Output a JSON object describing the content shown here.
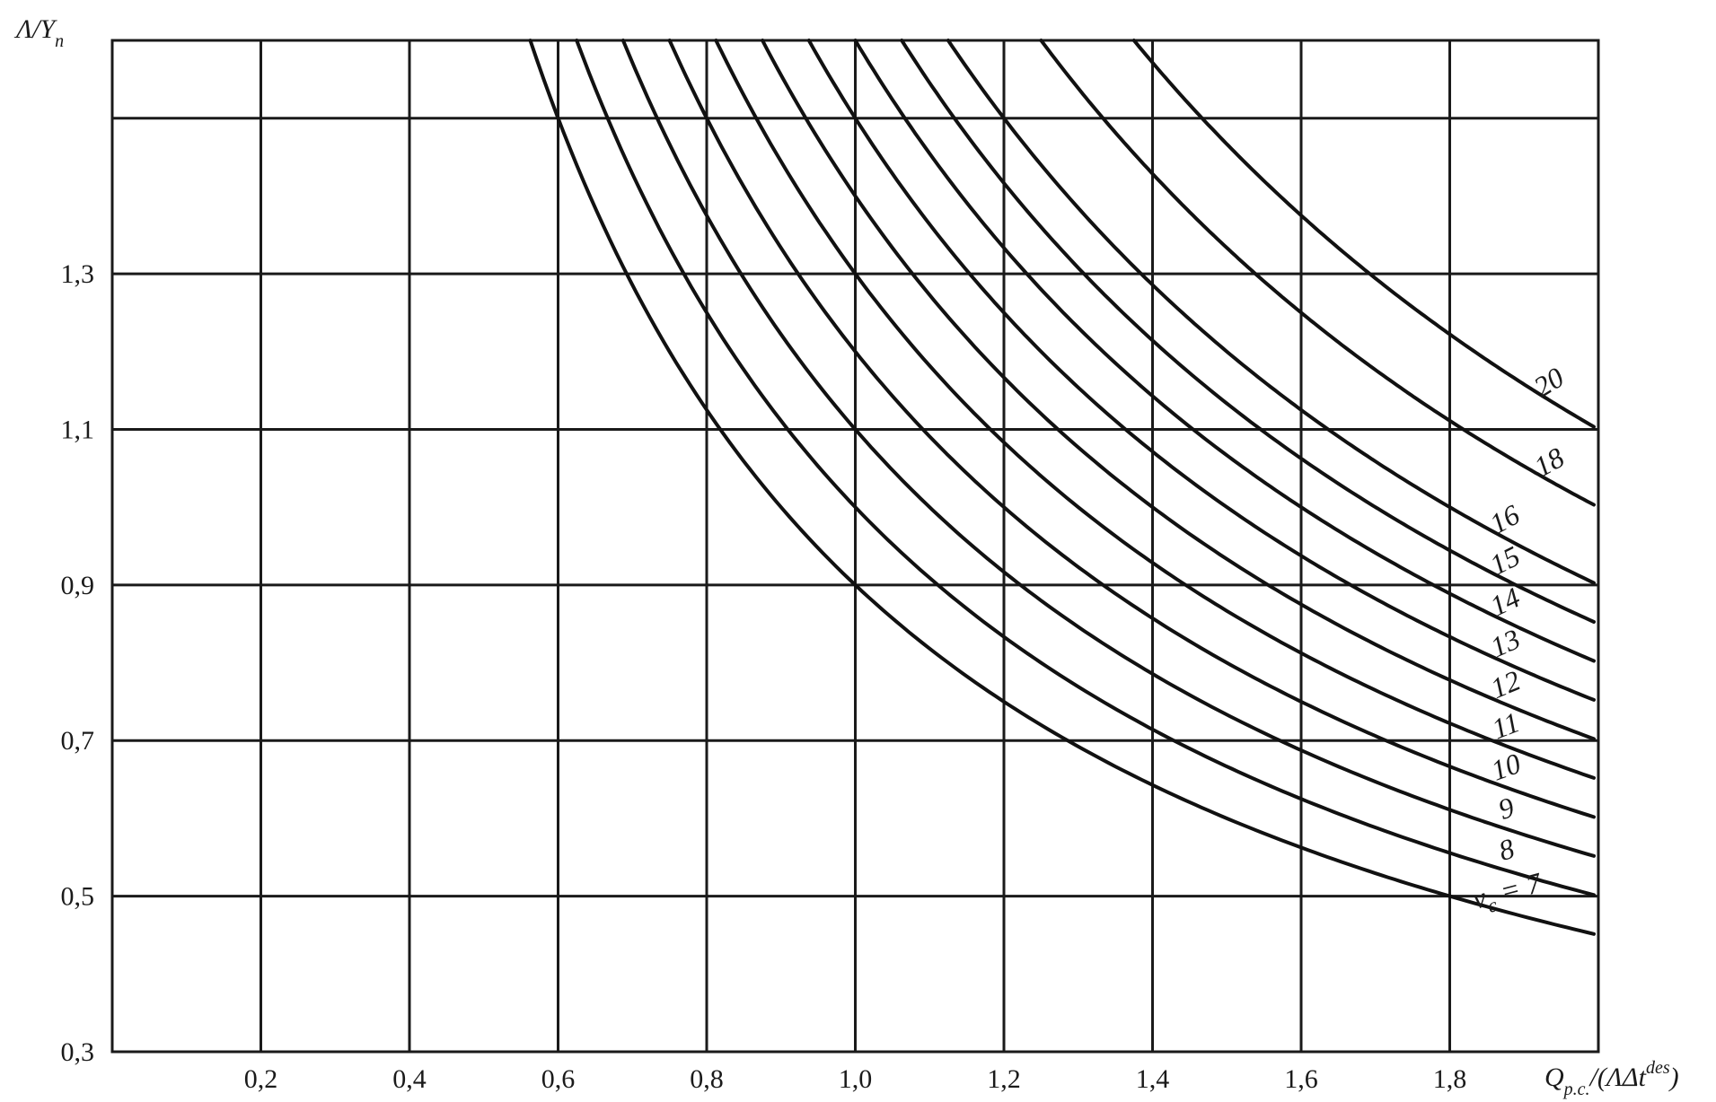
{
  "chart_data": {
    "type": "line",
    "title": "",
    "ylabel": {
      "main": "Λ/Y",
      "sub": "n"
    },
    "xlabel": {
      "q": "Q",
      "sub": "p.c.",
      "rest": "/(ΛΔt",
      "sup": "des",
      "close": ")"
    },
    "xlim": [
      0,
      2.0
    ],
    "ylim": [
      0.3,
      1.6
    ],
    "x_ticks": [
      {
        "value": 0.2,
        "label": "0,2"
      },
      {
        "value": 0.4,
        "label": "0,4"
      },
      {
        "value": 0.6,
        "label": "0,6"
      },
      {
        "value": 0.8,
        "label": "0,8"
      },
      {
        "value": 1.0,
        "label": "1,0"
      },
      {
        "value": 1.2,
        "label": "1,2"
      },
      {
        "value": 1.4,
        "label": "1,4"
      },
      {
        "value": 1.6,
        "label": "1,6"
      },
      {
        "value": 1.8,
        "label": "1,8"
      }
    ],
    "y_ticks": [
      {
        "value": 0.3,
        "label": "0,3"
      },
      {
        "value": 0.5,
        "label": "0,5"
      },
      {
        "value": 0.7,
        "label": "0,7"
      },
      {
        "value": 0.9,
        "label": "0,9"
      },
      {
        "value": 1.1,
        "label": "1,1"
      },
      {
        "value": 1.3,
        "label": "1,3"
      }
    ],
    "grid": true,
    "series": [
      {
        "name": "ν_c = 7",
        "label": "ν",
        "label_sub": "c",
        "label_rest": " = 7",
        "k": 0.9
      },
      {
        "name": "8",
        "label": "8",
        "k": 1.0
      },
      {
        "name": "9",
        "label": "9",
        "k": 1.1
      },
      {
        "name": "10",
        "label": "10",
        "k": 1.2
      },
      {
        "name": "11",
        "label": "11",
        "k": 1.3
      },
      {
        "name": "12",
        "label": "12",
        "k": 1.4
      },
      {
        "name": "13",
        "label": "13",
        "k": 1.5
      },
      {
        "name": "14",
        "label": "14",
        "k": 1.6
      },
      {
        "name": "15",
        "label": "15",
        "k": 1.7
      },
      {
        "name": "16",
        "label": "16",
        "k": 1.8
      },
      {
        "name": "18",
        "label": "18",
        "k": 2.0
      },
      {
        "name": "20",
        "label": "20",
        "k": 2.2
      }
    ],
    "curve_formula": "y = k / x"
  }
}
